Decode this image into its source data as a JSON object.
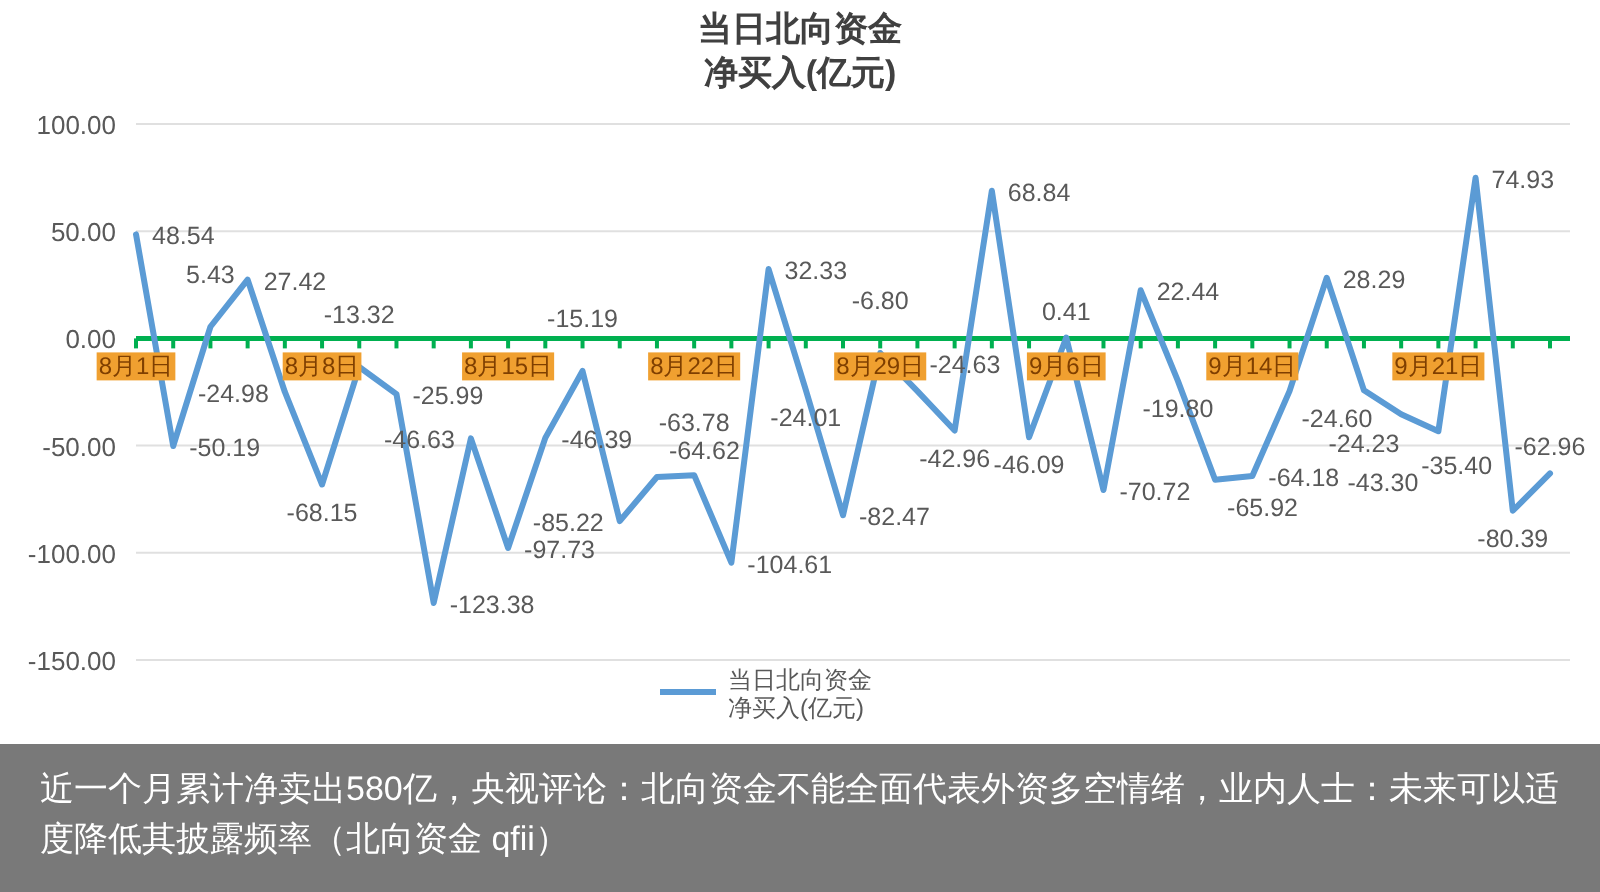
{
  "chart_data": {
    "type": "line",
    "title": "当日北向资金净买入(亿元)",
    "categories": [
      "8月1日",
      null,
      null,
      null,
      null,
      "8月8日",
      null,
      null,
      null,
      null,
      "8月15日",
      null,
      null,
      null,
      null,
      "8月22日",
      null,
      null,
      null,
      null,
      "8月29日",
      null,
      null,
      null,
      null,
      "9月6日",
      null,
      null,
      null,
      null,
      "9月14日",
      null,
      null,
      null,
      null,
      "9月21日",
      null,
      null,
      null
    ],
    "series": [
      {
        "name": "当日北向资金净买入(亿元)",
        "color": "#5b9bd5",
        "values": [
          48.54,
          -50.19,
          5.43,
          27.42,
          -24.98,
          -68.15,
          -13.32,
          -25.99,
          -123.38,
          -46.63,
          -97.73,
          -46.39,
          -15.19,
          -85.22,
          -64.62,
          -63.78,
          -104.61,
          32.33,
          -24.01,
          -82.47,
          -6.8,
          -24.63,
          -42.96,
          68.84,
          -46.09,
          0.41,
          -70.72,
          22.44,
          -19.8,
          -65.92,
          -64.18,
          -24.6,
          28.29,
          -24.23,
          -35.4,
          -43.3,
          74.93,
          -80.39,
          -62.96
        ],
        "value_labels": [
          "48.54",
          "-50.19",
          "5.43",
          "27.42",
          "-24.98",
          "-68.15",
          "-13.32",
          "-25.99",
          "-123.38",
          "-46.63",
          "-97.73",
          "-46.39",
          "-15.19",
          "-85.22",
          "-64.62",
          "-63.78",
          "-104.61",
          "32.33",
          "-24.01",
          "-82.47",
          "-6.80",
          "-24.63",
          "-42.96",
          "68.84",
          "-46.09",
          "0.41",
          "-70.72",
          "22.44",
          "-19.80",
          "-65.92",
          "-64.18",
          "-24.60",
          "28.29",
          "-24.23",
          "-35.40",
          "-43.30",
          "74.93",
          "-80.39",
          "-62.96"
        ]
      }
    ],
    "ylim": [
      -150,
      100
    ],
    "yticks": [
      {
        "value": -150,
        "label": "-150.00"
      },
      {
        "value": -100,
        "label": "-100.00"
      },
      {
        "value": -50,
        "label": "-50.00"
      },
      {
        "value": 0,
        "label": "0.00"
      },
      {
        "value": 50,
        "label": "50.00"
      },
      {
        "value": 100,
        "label": "100.00"
      }
    ],
    "grid": "y",
    "legend": "bottom",
    "marker": "none",
    "line_style": "solid",
    "annotations": [
      "近一个月累计净卖出580亿，央视评论：北向资金不能全面代表外资多空情绪，业内人士：未来可以适度降低其披露频率（北向资金 qfii）"
    ]
  }
}
